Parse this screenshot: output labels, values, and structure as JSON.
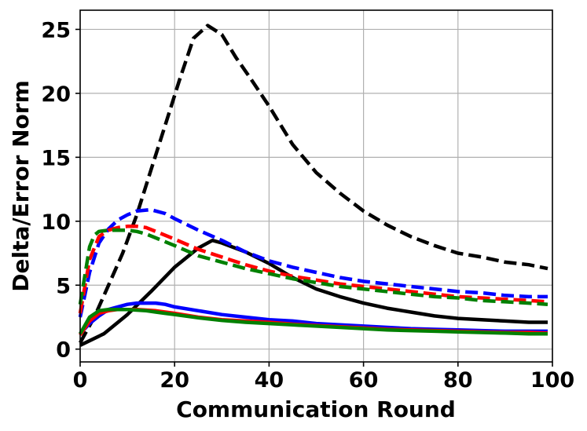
{
  "chart_data": {
    "type": "line",
    "title": "",
    "xlabel": "Communication Round",
    "ylabel": "Delta/Error Norm",
    "xlim": [
      0,
      100
    ],
    "ylim": [
      -1,
      26.5
    ],
    "xticks": [
      0,
      20,
      40,
      60,
      80,
      100
    ],
    "yticks": [
      0,
      5,
      10,
      15,
      20,
      25
    ],
    "grid": true,
    "legend": "none",
    "series": [
      {
        "color": "#000000",
        "style": "dashed",
        "x": [
          0,
          3,
          6,
          9,
          12,
          15,
          18,
          21,
          24,
          27,
          30,
          33,
          36,
          40,
          45,
          50,
          55,
          60,
          65,
          70,
          75,
          80,
          85,
          90,
          95,
          99
        ],
        "y": [
          0.5,
          2.5,
          5.0,
          7.5,
          10.5,
          14.0,
          17.5,
          21.0,
          24.3,
          25.3,
          24.6,
          22.8,
          21.2,
          19.0,
          16.0,
          13.8,
          12.2,
          10.8,
          9.7,
          8.8,
          8.1,
          7.5,
          7.2,
          6.8,
          6.6,
          6.3
        ]
      },
      {
        "color": "#000000",
        "style": "solid",
        "x": [
          0,
          5,
          10,
          15,
          20,
          25,
          28,
          30,
          35,
          40,
          45,
          50,
          55,
          60,
          65,
          70,
          75,
          80,
          85,
          90,
          95,
          99
        ],
        "y": [
          0.3,
          1.2,
          2.7,
          4.5,
          6.4,
          7.9,
          8.5,
          8.3,
          7.6,
          6.7,
          5.6,
          4.7,
          4.1,
          3.6,
          3.2,
          2.9,
          2.6,
          2.4,
          2.3,
          2.2,
          2.1,
          2.1
        ]
      },
      {
        "color": "#0000ff",
        "style": "dashed",
        "x": [
          0,
          2,
          4,
          6,
          8,
          10,
          12,
          15,
          18,
          20,
          25,
          30,
          35,
          40,
          45,
          50,
          55,
          60,
          65,
          70,
          75,
          80,
          85,
          90,
          95,
          99
        ],
        "y": [
          2.5,
          6.0,
          8.3,
          9.4,
          10.1,
          10.5,
          10.8,
          10.9,
          10.6,
          10.2,
          9.3,
          8.5,
          7.6,
          6.9,
          6.4,
          6.0,
          5.6,
          5.3,
          5.1,
          4.9,
          4.7,
          4.5,
          4.4,
          4.2,
          4.1,
          4.1
        ]
      },
      {
        "color": "#ff0000",
        "style": "dashed",
        "x": [
          0,
          2,
          4,
          6,
          8,
          10,
          12,
          14,
          16,
          20,
          25,
          30,
          35,
          40,
          45,
          50,
          55,
          60,
          65,
          70,
          75,
          80,
          85,
          90,
          95,
          99
        ],
        "y": [
          2.8,
          7.0,
          8.8,
          9.3,
          9.5,
          9.6,
          9.6,
          9.5,
          9.2,
          8.6,
          7.8,
          7.2,
          6.6,
          6.1,
          5.7,
          5.4,
          5.1,
          4.9,
          4.7,
          4.5,
          4.3,
          4.1,
          4.0,
          3.9,
          3.8,
          3.7
        ]
      },
      {
        "color": "#008000",
        "style": "dashed",
        "x": [
          0,
          2,
          3,
          4,
          6,
          8,
          10,
          12,
          14,
          16,
          20,
          25,
          30,
          35,
          40,
          45,
          50,
          55,
          60,
          65,
          70,
          75,
          80,
          85,
          90,
          95,
          99
        ],
        "y": [
          3.5,
          8.0,
          8.9,
          9.2,
          9.3,
          9.3,
          9.3,
          9.2,
          9.0,
          8.7,
          8.1,
          7.3,
          6.8,
          6.3,
          5.9,
          5.5,
          5.2,
          4.9,
          4.7,
          4.5,
          4.3,
          4.1,
          4.0,
          3.8,
          3.7,
          3.6,
          3.5
        ]
      },
      {
        "color": "#0000ff",
        "style": "solid",
        "x": [
          0,
          2,
          4,
          6,
          8,
          10,
          12,
          14,
          16,
          18,
          20,
          25,
          30,
          35,
          40,
          45,
          50,
          55,
          60,
          65,
          70,
          75,
          80,
          85,
          90,
          95,
          99
        ],
        "y": [
          1.2,
          2.0,
          2.6,
          3.1,
          3.3,
          3.5,
          3.6,
          3.6,
          3.6,
          3.5,
          3.3,
          3.0,
          2.7,
          2.5,
          2.3,
          2.2,
          2.0,
          1.9,
          1.8,
          1.7,
          1.6,
          1.55,
          1.5,
          1.45,
          1.4,
          1.4,
          1.4
        ]
      },
      {
        "color": "#ff0000",
        "style": "solid",
        "x": [
          0,
          2,
          4,
          6,
          8,
          10,
          12,
          14,
          16,
          18,
          20,
          25,
          30,
          35,
          40,
          45,
          50,
          55,
          60,
          65,
          70,
          75,
          80,
          85,
          90,
          95,
          99
        ],
        "y": [
          1.1,
          2.2,
          2.8,
          3.0,
          3.1,
          3.1,
          3.1,
          3.05,
          3.0,
          2.9,
          2.8,
          2.5,
          2.3,
          2.2,
          2.1,
          1.95,
          1.85,
          1.75,
          1.65,
          1.55,
          1.5,
          1.45,
          1.4,
          1.35,
          1.3,
          1.3,
          1.25
        ]
      },
      {
        "color": "#008000",
        "style": "solid",
        "x": [
          0,
          2,
          4,
          6,
          8,
          10,
          12,
          14,
          16,
          18,
          20,
          25,
          30,
          35,
          40,
          45,
          50,
          55,
          60,
          65,
          70,
          75,
          80,
          85,
          90,
          95,
          99
        ],
        "y": [
          1.2,
          2.5,
          3.0,
          3.1,
          3.1,
          3.1,
          3.05,
          3.0,
          2.9,
          2.8,
          2.7,
          2.45,
          2.25,
          2.1,
          2.0,
          1.9,
          1.8,
          1.7,
          1.6,
          1.5,
          1.45,
          1.4,
          1.35,
          1.3,
          1.25,
          1.2,
          1.2
        ]
      }
    ]
  }
}
